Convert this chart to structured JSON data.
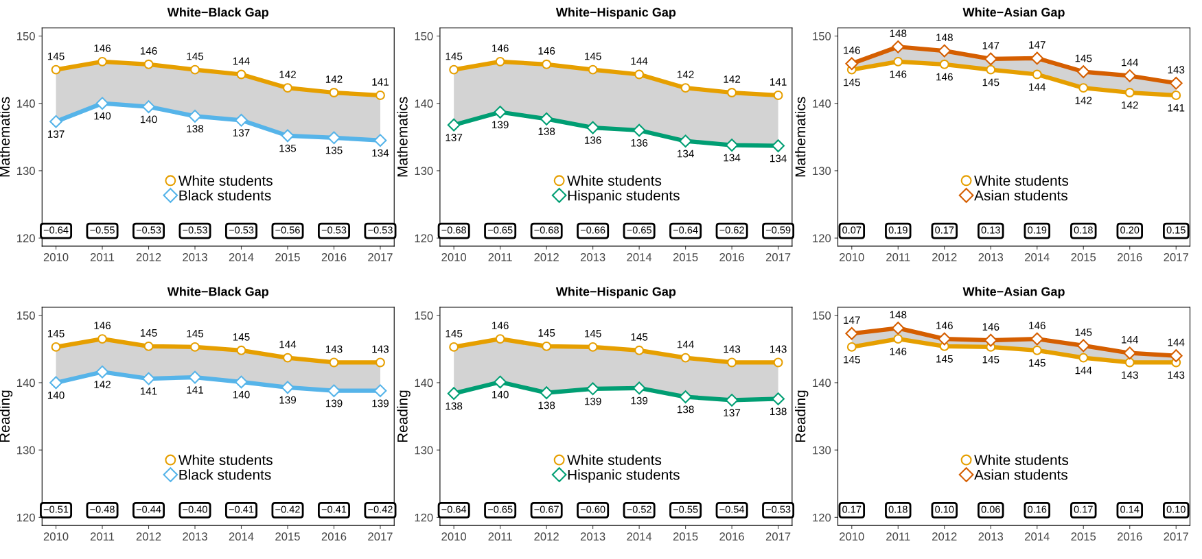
{
  "chart_data": [
    {
      "type": "line",
      "title": "White−Black Gap",
      "ylabel": "Mathematics",
      "x": [
        2010,
        2011,
        2012,
        2013,
        2014,
        2015,
        2016,
        2017
      ],
      "xlim": [
        2009.7,
        2017.3
      ],
      "xticks": [
        2010,
        2011,
        2012,
        2013,
        2014,
        2015,
        2016,
        2017
      ],
      "ylim": [
        118.8,
        151.2
      ],
      "yticks": [
        120,
        130,
        140,
        150
      ],
      "legend": "bottom",
      "grid": false,
      "series": [
        {
          "name": "White students",
          "color": "#e69f00",
          "marker": "circle",
          "values": [
            145.0,
            146.2,
            145.8,
            145.0,
            144.3,
            142.3,
            141.6,
            141.2
          ],
          "value_labels": [
            "145",
            "146",
            "146",
            "145",
            "144",
            "142",
            "142",
            "141"
          ],
          "lower": [
            137.3,
            140.0,
            139.5,
            138.1,
            137.5,
            135.2,
            134.9,
            134.5
          ],
          "upper": [
            145.0,
            146.2,
            145.8,
            145.0,
            144.3,
            142.3,
            141.6,
            141.2
          ]
        },
        {
          "name": "Black students",
          "color": "#56b4e9",
          "marker": "diamond",
          "values": [
            137.3,
            140.0,
            139.5,
            138.1,
            137.5,
            135.2,
            134.9,
            134.5
          ],
          "value_labels": [
            "137",
            "140",
            "140",
            "138",
            "137",
            "135",
            "135",
            "134"
          ]
        }
      ],
      "annotations": [
        "−0.64",
        "−0.55",
        "−0.53",
        "−0.53",
        "−0.53",
        "−0.56",
        "−0.53",
        "−0.53"
      ]
    },
    {
      "type": "line",
      "title": "White−Hispanic Gap",
      "ylabel": "Mathematics",
      "x": [
        2010,
        2011,
        2012,
        2013,
        2014,
        2015,
        2016,
        2017
      ],
      "xlim": [
        2009.7,
        2017.3
      ],
      "xticks": [
        2010,
        2011,
        2012,
        2013,
        2014,
        2015,
        2016,
        2017
      ],
      "ylim": [
        118.8,
        151.2
      ],
      "yticks": [
        120,
        130,
        140,
        150
      ],
      "legend": "bottom",
      "grid": false,
      "series": [
        {
          "name": "White students",
          "color": "#e69f00",
          "marker": "circle",
          "values": [
            145.0,
            146.2,
            145.8,
            145.0,
            144.3,
            142.3,
            141.6,
            141.2
          ],
          "value_labels": [
            "145",
            "146",
            "146",
            "145",
            "144",
            "142",
            "142",
            "141"
          ],
          "lower": [
            136.8,
            138.7,
            137.7,
            136.4,
            136.0,
            134.4,
            133.8,
            133.7
          ],
          "upper": [
            145.0,
            146.2,
            145.8,
            145.0,
            144.3,
            142.3,
            141.6,
            141.2
          ]
        },
        {
          "name": "Hispanic students",
          "color": "#009e73",
          "marker": "diamond",
          "values": [
            136.8,
            138.7,
            137.7,
            136.4,
            136.0,
            134.4,
            133.8,
            133.7
          ],
          "value_labels": [
            "137",
            "139",
            "138",
            "136",
            "136",
            "134",
            "134",
            "134"
          ]
        }
      ],
      "annotations": [
        "−0.68",
        "−0.65",
        "−0.68",
        "−0.66",
        "−0.65",
        "−0.64",
        "−0.62",
        "−0.59"
      ]
    },
    {
      "type": "line",
      "title": "White−Asian Gap",
      "ylabel": "Mathematics",
      "x": [
        2010,
        2011,
        2012,
        2013,
        2014,
        2015,
        2016,
        2017
      ],
      "xlim": [
        2009.7,
        2017.3
      ],
      "xticks": [
        2010,
        2011,
        2012,
        2013,
        2014,
        2015,
        2016,
        2017
      ],
      "ylim": [
        118.8,
        151.2
      ],
      "yticks": [
        120,
        130,
        140,
        150
      ],
      "legend": "bottom",
      "grid": false,
      "series": [
        {
          "name": "White students",
          "color": "#e69f00",
          "marker": "circle",
          "values": [
            145.0,
            146.2,
            145.8,
            145.0,
            144.3,
            142.3,
            141.6,
            141.2
          ],
          "value_labels": [
            "145",
            "146",
            "146",
            "145",
            "144",
            "142",
            "142",
            "141"
          ],
          "lower": [
            145.0,
            146.2,
            145.8,
            145.0,
            144.3,
            142.3,
            141.6,
            141.2
          ],
          "upper": [
            145.9,
            148.4,
            147.8,
            146.6,
            146.7,
            144.7,
            144.1,
            143.0
          ]
        },
        {
          "name": "Asian students",
          "color": "#d55e00",
          "marker": "diamond",
          "values": [
            145.9,
            148.4,
            147.8,
            146.6,
            146.7,
            144.7,
            144.1,
            143.0
          ],
          "value_labels": [
            "146",
            "148",
            "148",
            "147",
            "147",
            "145",
            "144",
            "143"
          ]
        }
      ],
      "annotations": [
        "0.07",
        "0.19",
        "0.17",
        "0.13",
        "0.19",
        "0.18",
        "0.20",
        "0.15"
      ]
    },
    {
      "type": "line",
      "title": "White−Black Gap",
      "ylabel": "Reading",
      "x": [
        2010,
        2011,
        2012,
        2013,
        2014,
        2015,
        2016,
        2017
      ],
      "xlim": [
        2009.7,
        2017.3
      ],
      "xticks": [
        2010,
        2011,
        2012,
        2013,
        2014,
        2015,
        2016,
        2017
      ],
      "ylim": [
        118.8,
        151.2
      ],
      "yticks": [
        120,
        130,
        140,
        150
      ],
      "legend": "bottom",
      "grid": false,
      "series": [
        {
          "name": "White students",
          "color": "#e69f00",
          "marker": "circle",
          "values": [
            145.3,
            146.5,
            145.4,
            145.3,
            144.8,
            143.7,
            143.0,
            143.0
          ],
          "value_labels": [
            "145",
            "146",
            "145",
            "145",
            "145",
            "144",
            "143",
            "143"
          ],
          "lower": [
            140.0,
            141.6,
            140.6,
            140.8,
            140.1,
            139.3,
            138.8,
            138.8
          ],
          "upper": [
            145.3,
            146.5,
            145.4,
            145.3,
            144.8,
            143.7,
            143.0,
            143.0
          ]
        },
        {
          "name": "Black students",
          "color": "#56b4e9",
          "marker": "diamond",
          "values": [
            140.0,
            141.6,
            140.6,
            140.8,
            140.1,
            139.3,
            138.8,
            138.8
          ],
          "value_labels": [
            "140",
            "142",
            "141",
            "141",
            "140",
            "139",
            "139",
            "139"
          ]
        }
      ],
      "annotations": [
        "−0.51",
        "−0.48",
        "−0.44",
        "−0.40",
        "−0.41",
        "−0.42",
        "−0.41",
        "−0.42"
      ]
    },
    {
      "type": "line",
      "title": "White−Hispanic Gap",
      "ylabel": "Reading",
      "x": [
        2010,
        2011,
        2012,
        2013,
        2014,
        2015,
        2016,
        2017
      ],
      "xlim": [
        2009.7,
        2017.3
      ],
      "xticks": [
        2010,
        2011,
        2012,
        2013,
        2014,
        2015,
        2016,
        2017
      ],
      "ylim": [
        118.8,
        151.2
      ],
      "yticks": [
        120,
        130,
        140,
        150
      ],
      "legend": "bottom",
      "grid": false,
      "series": [
        {
          "name": "White students",
          "color": "#e69f00",
          "marker": "circle",
          "values": [
            145.3,
            146.5,
            145.4,
            145.3,
            144.8,
            143.7,
            143.0,
            143.0
          ],
          "value_labels": [
            "145",
            "146",
            "145",
            "145",
            "145",
            "144",
            "143",
            "143"
          ],
          "lower": [
            138.4,
            140.1,
            138.5,
            139.1,
            139.2,
            137.9,
            137.4,
            137.6
          ],
          "upper": [
            145.3,
            146.5,
            145.4,
            145.3,
            144.8,
            143.7,
            143.0,
            143.0
          ]
        },
        {
          "name": "Hispanic students",
          "color": "#009e73",
          "marker": "diamond",
          "values": [
            138.4,
            140.1,
            138.5,
            139.1,
            139.2,
            137.9,
            137.4,
            137.6
          ],
          "value_labels": [
            "138",
            "140",
            "138",
            "139",
            "139",
            "138",
            "137",
            "138"
          ]
        }
      ],
      "annotations": [
        "−0.64",
        "−0.65",
        "−0.67",
        "−0.60",
        "−0.52",
        "−0.55",
        "−0.54",
        "−0.53"
      ]
    },
    {
      "type": "line",
      "title": "White−Asian Gap",
      "ylabel": "Reading",
      "x": [
        2010,
        2011,
        2012,
        2013,
        2014,
        2015,
        2016,
        2017
      ],
      "xlim": [
        2009.7,
        2017.3
      ],
      "xticks": [
        2010,
        2011,
        2012,
        2013,
        2014,
        2015,
        2016,
        2017
      ],
      "ylim": [
        118.8,
        151.2
      ],
      "yticks": [
        120,
        130,
        140,
        150
      ],
      "legend": "bottom",
      "grid": false,
      "series": [
        {
          "name": "White students",
          "color": "#e69f00",
          "marker": "circle",
          "values": [
            145.3,
            146.5,
            145.4,
            145.3,
            144.8,
            143.7,
            143.0,
            143.0
          ],
          "value_labels": [
            "145",
            "146",
            "145",
            "145",
            "145",
            "144",
            "143",
            "143"
          ],
          "lower": [
            145.3,
            146.5,
            145.4,
            145.3,
            144.8,
            143.7,
            143.0,
            143.0
          ],
          "upper": [
            147.3,
            148.1,
            146.5,
            146.3,
            146.5,
            145.5,
            144.4,
            144.0
          ]
        },
        {
          "name": "Asian students",
          "color": "#d55e00",
          "marker": "diamond",
          "values": [
            147.3,
            148.1,
            146.5,
            146.3,
            146.5,
            145.5,
            144.4,
            144.0
          ],
          "value_labels": [
            "147",
            "148",
            "146",
            "146",
            "146",
            "145",
            "144",
            "144"
          ]
        }
      ],
      "annotations": [
        "0.17",
        "0.18",
        "0.10",
        "0.06",
        "0.16",
        "0.17",
        "0.14",
        "0.10"
      ]
    }
  ]
}
